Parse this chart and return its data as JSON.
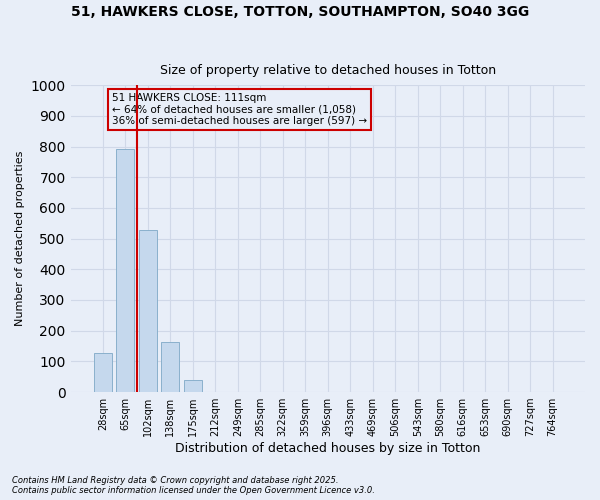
{
  "title_line1": "51, HAWKERS CLOSE, TOTTON, SOUTHAMPTON, SO40 3GG",
  "title_line2": "Size of property relative to detached houses in Totton",
  "xlabel": "Distribution of detached houses by size in Totton",
  "ylabel": "Number of detached properties",
  "bar_color": "#c5d8ed",
  "bar_edge_color": "#8ab0cc",
  "vline_color": "#cc0000",
  "annotation_text": "51 HAWKERS CLOSE: 111sqm\n← 64% of detached houses are smaller (1,058)\n36% of semi-detached houses are larger (597) →",
  "annotation_box_color": "#cc0000",
  "background_color": "#e8eef8",
  "categories": [
    "28sqm",
    "65sqm",
    "102sqm",
    "138sqm",
    "175sqm",
    "212sqm",
    "249sqm",
    "285sqm",
    "322sqm",
    "359sqm",
    "396sqm",
    "433sqm",
    "469sqm",
    "506sqm",
    "543sqm",
    "580sqm",
    "616sqm",
    "653sqm",
    "690sqm",
    "727sqm",
    "764sqm"
  ],
  "values": [
    128,
    793,
    529,
    163,
    38,
    0,
    0,
    0,
    0,
    0,
    0,
    0,
    0,
    0,
    0,
    0,
    0,
    0,
    0,
    0,
    0
  ],
  "ylim": [
    0,
    1000
  ],
  "yticks": [
    0,
    100,
    200,
    300,
    400,
    500,
    600,
    700,
    800,
    900,
    1000
  ],
  "grid_color": "#d0d8e8",
  "footer_line1": "Contains HM Land Registry data © Crown copyright and database right 2025.",
  "footer_line2": "Contains public sector information licensed under the Open Government Licence v3.0."
}
